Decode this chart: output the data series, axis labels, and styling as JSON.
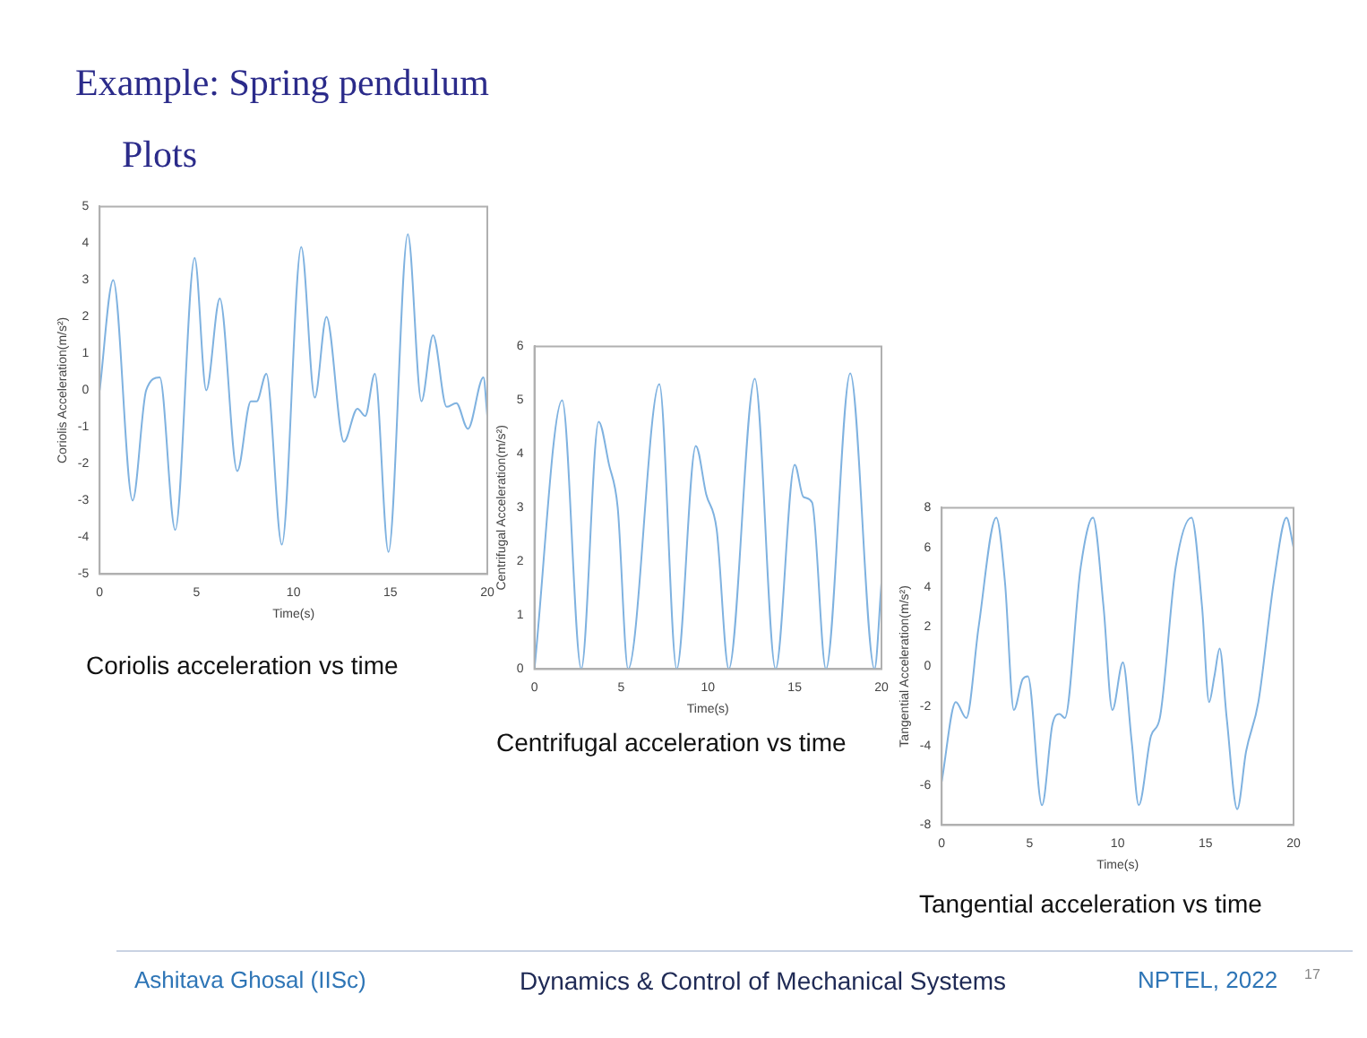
{
  "chart_data": [
    {
      "type": "other",
      "title": "Example: Spring pendulum",
      "subtitle": "Plots",
      "annotations": [
        "Ashitava Ghosal (IISc)",
        "Dynamics & Control of Mechanical Systems",
        "NPTEL, 2022",
        "17"
      ]
    },
    {
      "type": "line",
      "xlabel": "Time(s)",
      "ylabel": "Coriolis Acceleration(m/s²)",
      "annotations": [
        "Coriolis acceleration vs time"
      ],
      "xlim": [
        0,
        20
      ],
      "ylim": [
        -5,
        5
      ],
      "xticks": [
        0,
        5,
        10,
        15,
        20
      ],
      "yticks": [
        -5,
        -4,
        -3,
        -2,
        -1,
        0,
        1,
        2,
        3,
        4,
        5
      ],
      "x": [
        0,
        0.7,
        1.7,
        2.4,
        3.1,
        3.9,
        4.9,
        5.5,
        6.2,
        7.1,
        7.8,
        8.1,
        8.6,
        9.4,
        10.4,
        11.1,
        11.7,
        12.6,
        13.3,
        13.7,
        14.2,
        14.9,
        15.9,
        16.6,
        17.2,
        17.9,
        18.4,
        19.0,
        19.8,
        20
      ],
      "series": [
        {
          "color": "#7fb2e0",
          "values": [
            0,
            3.0,
            -3.0,
            0,
            0.35,
            -3.8,
            3.6,
            0,
            2.5,
            -2.2,
            -0.3,
            -0.3,
            0.45,
            -4.2,
            3.9,
            -0.2,
            2.0,
            -1.4,
            -0.5,
            -0.7,
            0.45,
            -4.4,
            4.25,
            -0.3,
            1.5,
            -0.45,
            -0.35,
            -1.05,
            0.35,
            -0.7
          ]
        }
      ]
    },
    {
      "type": "line",
      "xlabel": "Time(s)",
      "ylabel": "Centrifugal Acceleration(m/s²)",
      "annotations": [
        "Centrifugal acceleration vs time"
      ],
      "xlim": [
        0,
        20
      ],
      "ylim": [
        0,
        6
      ],
      "xticks": [
        0,
        5,
        10,
        15,
        20
      ],
      "yticks": [
        0,
        1,
        2,
        3,
        4,
        5,
        6
      ],
      "x": [
        0,
        1.6,
        2.7,
        3.7,
        4.3,
        4.8,
        5.4,
        7.2,
        8.2,
        9.3,
        9.9,
        10.5,
        11.2,
        12.7,
        13.9,
        15.0,
        15.5,
        16.0,
        16.8,
        18.2,
        19.6,
        20
      ],
      "series": [
        {
          "color": "#7fb2e0",
          "values": [
            0,
            5.0,
            0,
            4.6,
            3.8,
            3.0,
            0,
            5.3,
            0,
            4.15,
            3.25,
            2.6,
            0,
            5.4,
            0,
            3.8,
            3.2,
            3.1,
            0,
            5.5,
            0,
            1.6
          ]
        }
      ]
    },
    {
      "type": "line",
      "xlabel": "Time(s)",
      "ylabel": "Tangential Acceleration(m/s²)",
      "annotations": [
        "Tangential acceleration vs time"
      ],
      "xlim": [
        0,
        20
      ],
      "ylim": [
        -8,
        8
      ],
      "xticks": [
        0,
        5,
        10,
        15,
        20
      ],
      "yticks": [
        -8,
        -6,
        -4,
        -2,
        0,
        2,
        4,
        6,
        8
      ],
      "x": [
        0,
        0.8,
        1.4,
        2.1,
        3.1,
        3.6,
        4.1,
        4.6,
        4.9,
        5.7,
        6.3,
        6.7,
        7.0,
        7.9,
        8.6,
        9.2,
        9.7,
        10.3,
        10.8,
        11.2,
        11.9,
        12.4,
        13.3,
        14.2,
        14.8,
        15.2,
        15.5,
        15.8,
        16.2,
        16.8,
        17.3,
        18.0,
        18.9,
        19.6,
        20
      ],
      "series": [
        {
          "color": "#7fb2e0",
          "values": [
            -5.8,
            -1.8,
            -2.6,
            2.0,
            7.5,
            4.2,
            -2.2,
            -0.65,
            -0.5,
            -7.0,
            -2.9,
            -2.4,
            -2.6,
            5.0,
            7.5,
            3.0,
            -2.2,
            0.2,
            -3.8,
            -7.0,
            -3.5,
            -2.6,
            5.0,
            7.5,
            3.0,
            -1.8,
            -0.5,
            0.9,
            -2.6,
            -7.2,
            -4.3,
            -1.8,
            4.4,
            7.5,
            6.0
          ]
        }
      ]
    }
  ]
}
